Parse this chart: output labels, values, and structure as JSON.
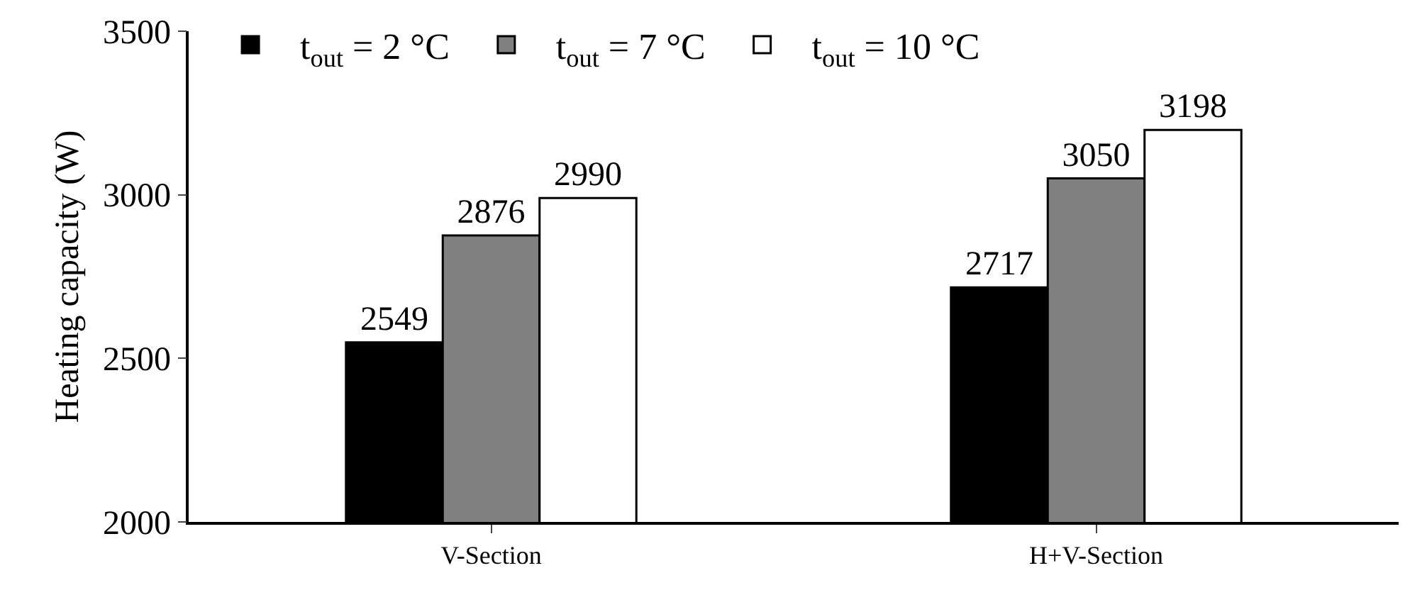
{
  "chart_data": {
    "type": "bar",
    "ylabel": "Heating capacity (W)",
    "categories": [
      "V-Section",
      "H+V-Section"
    ],
    "series": [
      {
        "name": "t$_{out}$ = 2 °C",
        "color": "#000000",
        "values": [
          2549,
          2717
        ]
      },
      {
        "name": "t$_{out}$ = 7 °C",
        "color": "#808080",
        "values": [
          2876,
          3050
        ]
      },
      {
        "name": "t$_{out}$ = 10 °C",
        "color": "#ffffff",
        "values": [
          2990,
          3198
        ]
      }
    ],
    "ylim": [
      2000,
      3500
    ],
    "yticks": [
      2000,
      2500,
      3000,
      3500
    ],
    "data_labels": true,
    "grid": false,
    "legend": "top"
  }
}
